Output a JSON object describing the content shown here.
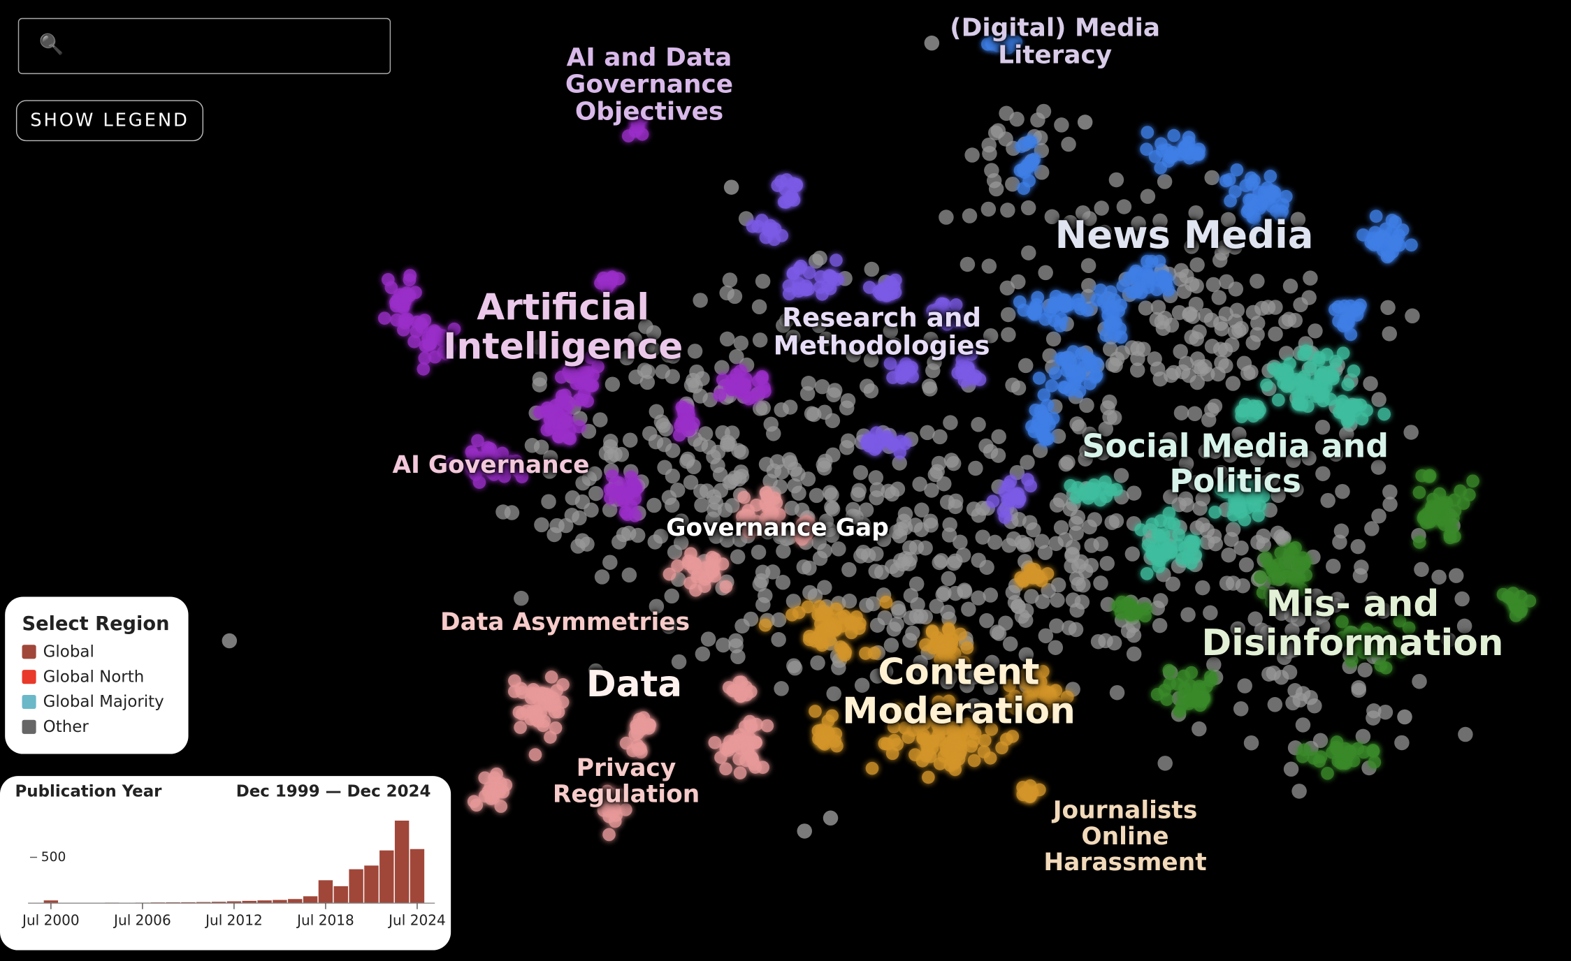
{
  "search": {
    "icon": "🔍"
  },
  "button": "SHOW LEGEND",
  "clusters": [
    {
      "label": "(Digital) Media Literacy",
      "color": "#d8cce9"
    },
    {
      "label": "AI and Data Governance Objectives",
      "color": "#d9b9ea"
    },
    {
      "label": "News Media",
      "color": "#dfe4f0"
    },
    {
      "label": "Artificial Intelligence",
      "color": "#ebc8ea"
    },
    {
      "label": "Research and Methodologies",
      "color": "#e7ddf6"
    },
    {
      "label": "AI Governance",
      "color": "#f2c8da"
    },
    {
      "label": "Social Media and Politics",
      "color": "#d8f3e9"
    },
    {
      "label": "Governance Gap",
      "color": "#ffffff"
    },
    {
      "label": "Data Asymmetries",
      "color": "#f6cbc9"
    },
    {
      "label": "Mis- and Disinformation",
      "color": "#e2f0d5"
    },
    {
      "label": "Data",
      "color": "#fff1ee"
    },
    {
      "label": "Content Moderation",
      "color": "#fff1d2"
    },
    {
      "label": "Privacy Regulation",
      "color": "#f6cbc9"
    },
    {
      "label": "Journalists Online Harassment",
      "color": "#f1d9ba"
    }
  ],
  "legend": {
    "title": "Select Region",
    "items": [
      {
        "name": "Global",
        "color": "#a0473a"
      },
      {
        "name": "Global North",
        "color": "#e8392a"
      },
      {
        "name": "Global Majority",
        "color": "#6bb8c9"
      },
      {
        "name": "Other",
        "color": "#666666"
      }
    ]
  },
  "chart_data": {
    "type": "histogram",
    "title": "Publication Year",
    "subtitle": "Dec 1999 — Dec 2024",
    "color": "#a0473a",
    "bins": [
      2000,
      2001,
      2002,
      2003,
      2004,
      2005,
      2006,
      2007,
      2008,
      2009,
      2010,
      2011,
      2012,
      2013,
      2014,
      2015,
      2016,
      2017,
      2018,
      2019,
      2020,
      2021,
      2022,
      2023,
      2024,
      2025
    ],
    "values": [
      30,
      4,
      5,
      5,
      6,
      5,
      6,
      8,
      9,
      10,
      12,
      15,
      20,
      25,
      30,
      35,
      45,
      75,
      250,
      185,
      370,
      410,
      575,
      900,
      590
    ],
    "xlim": [
      1999.92,
      2025
    ],
    "xticks": [
      {
        "value": 2000.5,
        "label": "Jul 2000"
      },
      {
        "value": 2006.5,
        "label": "Jul 2006"
      },
      {
        "value": 2012.5,
        "label": "Jul 2012"
      },
      {
        "value": 2018.5,
        "label": "Jul 2018"
      },
      {
        "value": 2024.5,
        "label": "Jul 2024"
      }
    ],
    "ylim": [
      0,
      950
    ],
    "yticks": [
      500
    ]
  }
}
